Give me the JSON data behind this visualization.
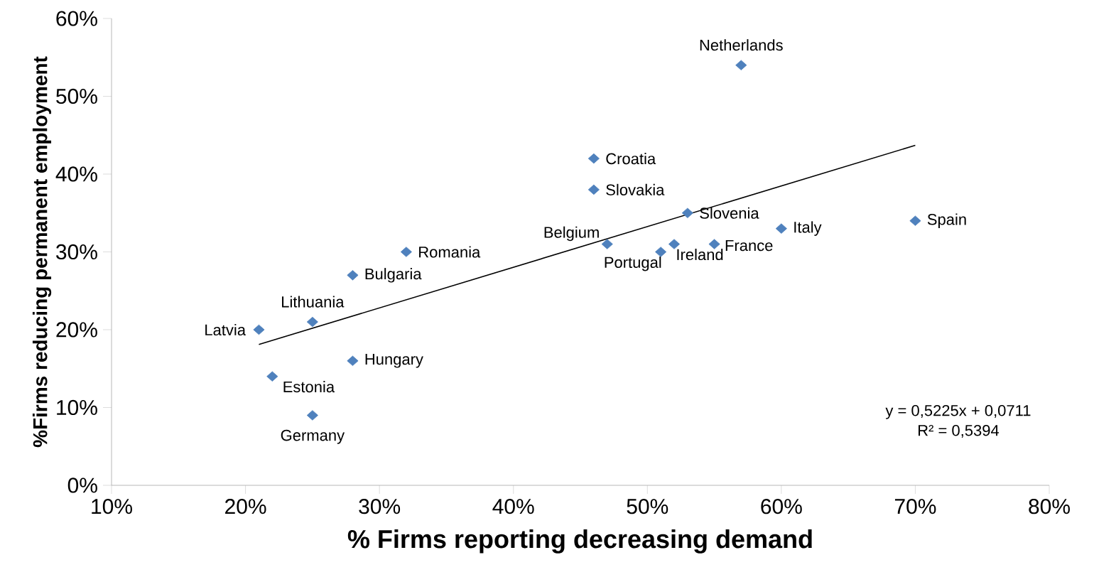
{
  "chart_data": {
    "type": "scatter",
    "xlabel": "% Firms reporting decreasing demand",
    "ylabel": "%Firms reducing permanent employment",
    "xlim": [
      10,
      80
    ],
    "ylim": [
      0,
      60
    ],
    "xticks": [
      {
        "value": 10,
        "label": "10%"
      },
      {
        "value": 20,
        "label": "20%"
      },
      {
        "value": 30,
        "label": "30%"
      },
      {
        "value": 40,
        "label": "40%"
      },
      {
        "value": 50,
        "label": "50%"
      },
      {
        "value": 60,
        "label": "60%"
      },
      {
        "value": 70,
        "label": "70%"
      },
      {
        "value": 80,
        "label": "80%"
      }
    ],
    "yticks": [
      {
        "value": 0,
        "label": "0%"
      },
      {
        "value": 10,
        "label": "10%"
      },
      {
        "value": 20,
        "label": "20%"
      },
      {
        "value": 30,
        "label": "30%"
      },
      {
        "value": 40,
        "label": "40%"
      },
      {
        "value": 50,
        "label": "50%"
      },
      {
        "value": 60,
        "label": "60%"
      }
    ],
    "grid": false,
    "series": [
      {
        "marker": "diamond",
        "color": "#4f81bd",
        "x": [
          57,
          46,
          46,
          53,
          60,
          70,
          47,
          51,
          52,
          55,
          32,
          28,
          25,
          21,
          28,
          22,
          25
        ],
        "values": [
          54,
          42,
          38,
          35,
          33,
          34,
          31,
          30,
          31,
          31,
          30,
          27,
          21,
          20,
          16,
          14,
          9
        ]
      },
      {
        "type": "line",
        "marker": "none",
        "color": "#000000",
        "x": [
          21,
          70
        ],
        "values": [
          18.1,
          43.7
        ]
      }
    ],
    "annotations": [
      {
        "text": "Netherlands",
        "x": 57,
        "y": 54
      },
      {
        "text": "Croatia",
        "x": 46,
        "y": 42
      },
      {
        "text": "Slovakia",
        "x": 46,
        "y": 38
      },
      {
        "text": "Slovenia",
        "x": 53,
        "y": 35
      },
      {
        "text": "Italy",
        "x": 60,
        "y": 33
      },
      {
        "text": "Spain",
        "x": 70,
        "y": 34
      },
      {
        "text": "Belgium",
        "x": 47,
        "y": 31
      },
      {
        "text": "Portugal",
        "x": 51,
        "y": 30
      },
      {
        "text": "Ireland",
        "x": 52,
        "y": 31
      },
      {
        "text": "France",
        "x": 55,
        "y": 31
      },
      {
        "text": "Romania",
        "x": 32,
        "y": 30
      },
      {
        "text": "Bulgaria",
        "x": 28,
        "y": 27
      },
      {
        "text": "Lithuania",
        "x": 25,
        "y": 21
      },
      {
        "text": "Latvia",
        "x": 21,
        "y": 20
      },
      {
        "text": "Hungary",
        "x": 28,
        "y": 16
      },
      {
        "text": "Estonia",
        "x": 22,
        "y": 14
      },
      {
        "text": "Germany",
        "x": 25,
        "y": 9
      },
      "y = 0,5225x + 0,0711",
      "R² = 0,5394"
    ]
  }
}
